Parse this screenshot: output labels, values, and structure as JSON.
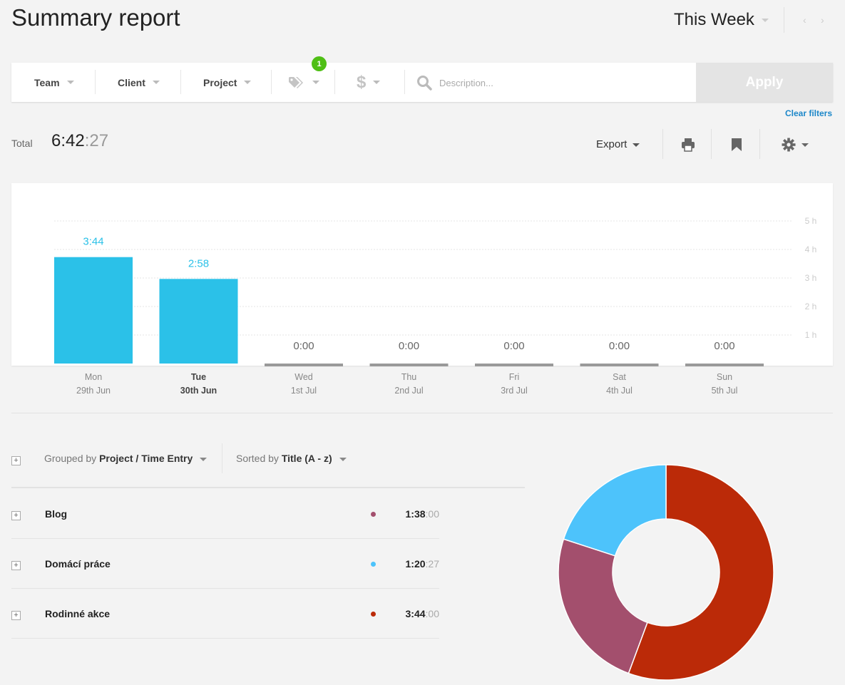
{
  "header": {
    "title": "Summary report",
    "period": "This Week"
  },
  "filters": {
    "team": "Team",
    "client": "Client",
    "project": "Project",
    "tag_badge": "1",
    "description_placeholder": "Description...",
    "apply": "Apply",
    "clear": "Clear filters"
  },
  "totals": {
    "label": "Total",
    "hm": "6:42",
    "sec": ":27",
    "export": "Export"
  },
  "colors": {
    "bar": "#2bc1e8",
    "bar_empty": "#999999",
    "accent_link": "#1c87c9",
    "badge": "#4fbf15"
  },
  "chart_data": {
    "type": "bar",
    "categories": [
      "Mon 29th Jun",
      "Tue 30th Jun",
      "Wed 1st Jul",
      "Thu 2nd Jul",
      "Fri 3rd Jul",
      "Sat 4th Jul",
      "Sun 5th Jul"
    ],
    "days": [
      {
        "day": "Mon",
        "date": "29th Jun",
        "label": "3:44",
        "hours": 3.733
      },
      {
        "day": "Tue",
        "date": "30th Jun",
        "label": "2:58",
        "hours": 2.967
      },
      {
        "day": "Wed",
        "date": "1st Jul",
        "label": "0:00",
        "hours": 0
      },
      {
        "day": "Thu",
        "date": "2nd Jul",
        "label": "0:00",
        "hours": 0
      },
      {
        "day": "Fri",
        "date": "3rd Jul",
        "label": "0:00",
        "hours": 0
      },
      {
        "day": "Sat",
        "date": "4th Jul",
        "label": "0:00",
        "hours": 0
      },
      {
        "day": "Sun",
        "date": "5th Jul",
        "label": "0:00",
        "hours": 0
      }
    ],
    "values": [
      3.733,
      2.967,
      0,
      0,
      0,
      0,
      0
    ],
    "yticks": [
      "1 h",
      "2 h",
      "3 h",
      "4 h",
      "5 h"
    ],
    "ylim": [
      0,
      5
    ],
    "selected_day": "Tue",
    "grid": true
  },
  "grouping": {
    "group_prefix": "Grouped by",
    "group_value": "Project / Time Entry",
    "sort_prefix": "Sorted by",
    "sort_value": "Title (A - z)"
  },
  "projects": [
    {
      "name": "Blog",
      "time": "1:38",
      "sec": ":00",
      "color": "#a34f6d",
      "seconds": 5880
    },
    {
      "name": "Domácí práce",
      "time": "1:20",
      "sec": ":27",
      "color": "#4dc3fb",
      "seconds": 4827
    },
    {
      "name": "Rodinné akce",
      "time": "3:44",
      "sec": ":00",
      "color": "#bb2a08",
      "seconds": 13440
    }
  ]
}
